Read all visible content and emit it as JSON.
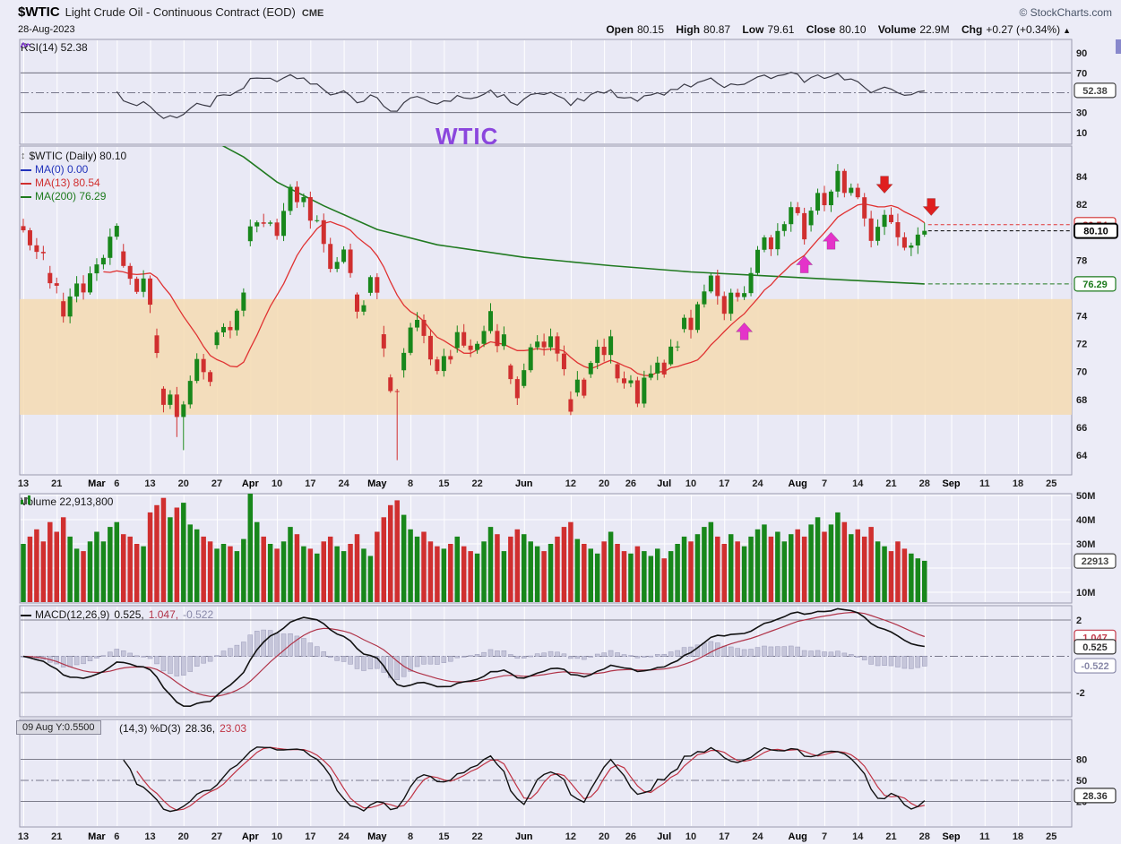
{
  "header": {
    "symbol": "$WTIC",
    "title": "Light Crude Oil - Continuous Contract (EOD)",
    "exchange": "CME",
    "copyright": "© StockCharts.com",
    "date": "28-Aug-2023",
    "quote": {
      "open_label": "Open",
      "open": "80.15",
      "high_label": "High",
      "high": "80.87",
      "low_label": "Low",
      "low": "79.61",
      "close_label": "Close",
      "close": "80.10",
      "volume_label": "Volume",
      "volume": "22.9M",
      "chg_label": "Chg",
      "chg": "+0.27 (+0.34%)",
      "chg_arrow": "▲"
    }
  },
  "watermark": "WTIC",
  "panels": {
    "rsi": {
      "legend": "RSI(14) 52.38"
    },
    "price": {
      "line1": "$WTIC (Daily) 80.10",
      "ma0": "MA(0) 0.00",
      "ma13": "MA(13) 80.54",
      "ma200": "MA(200) 76.29"
    },
    "volume": {
      "legend": "Volume 22,913,800"
    },
    "macd": {
      "name": "MACD(12,26,9)",
      "v1": "0.525,",
      "v2": "1.047,",
      "v3": "-0.522"
    },
    "stoch": {
      "tooltip": "09 Aug Y:0.5500",
      "name": "(14,3) %D(3)",
      "v1": "28.36,",
      "v2": "23.03"
    }
  },
  "colors": {
    "up": "#18871b",
    "down": "#d02f2f",
    "ma13": "#e03232",
    "ma200": "#217a21",
    "rsi_line": "#3a3a46",
    "macd_line": "#111111",
    "macd_signal": "#b03348",
    "macd_hist_fill": "#c6c6da",
    "macd_hist_stroke": "#9a9ab8",
    "stoch_k": "#111111",
    "stoch_d": "#c03344",
    "band": "rgba(244,218,178,0.85)",
    "arrow_up": "#e433c9",
    "arrow_down": "#df1f1f",
    "panel_bg": "#e9e9f5",
    "panel_border": "#9a9aae",
    "grid": "#ffffff",
    "accent_purple": "#8b46dd"
  },
  "axes": {
    "rsi": {
      "ticks": [
        [
          "90",
          90
        ],
        [
          "70",
          70
        ],
        [
          "30",
          30
        ],
        [
          "10",
          10
        ]
      ],
      "boxes": [
        [
          "52.38",
          52.38,
          "#444444",
          false
        ]
      ]
    },
    "price": {
      "ticks": [
        [
          "84",
          84
        ],
        [
          "82",
          82
        ],
        [
          "78",
          78
        ],
        [
          "74",
          74
        ],
        [
          "72",
          72
        ],
        [
          "70",
          70
        ],
        [
          "68",
          68
        ],
        [
          "66",
          66
        ],
        [
          "64",
          64
        ]
      ],
      "boxes": [
        [
          "80.54",
          80.54,
          "#d02f2f",
          false
        ],
        [
          "76.29",
          76.29,
          "#1d7a1d",
          false
        ],
        [
          "80.10",
          80.1,
          "#000000",
          true
        ]
      ]
    },
    "volume": {
      "ticks": [
        [
          "50M",
          50
        ],
        [
          "40M",
          40
        ],
        [
          "30M",
          30
        ],
        [
          "10M",
          10
        ]
      ],
      "boxes": [
        [
          "22913",
          22.913,
          "#444444",
          false
        ]
      ]
    },
    "macd": {
      "ticks": [
        [
          "2",
          2
        ],
        [
          "-2",
          -2
        ]
      ],
      "boxes": [
        [
          "1.047",
          1.047,
          "#c23b4b",
          false
        ],
        [
          "0.525",
          0.525,
          "#333333",
          false
        ],
        [
          "-0.522",
          -0.522,
          "#8888a8",
          false
        ]
      ]
    },
    "stoch": {
      "ticks": [
        [
          "80",
          80
        ],
        [
          "50",
          50
        ],
        [
          "20",
          20
        ]
      ],
      "boxes": [
        [
          "28.36",
          28.36,
          "#333333",
          false
        ]
      ]
    }
  },
  "chart_data": [
    {
      "id": "rsi",
      "type": "line",
      "name": "RSI(14)",
      "period": 14,
      "last": 52.38,
      "ylim": [
        0,
        100
      ],
      "ref_lines": [
        {
          "v": 70
        },
        {
          "v": 50,
          "dash": true
        },
        {
          "v": 30
        }
      ],
      "note": "computed from price closes"
    },
    {
      "id": "price",
      "type": "candlestick",
      "symbol": "$WTIC",
      "timeframe": "Daily",
      "last": {
        "open": 80.15,
        "high": 80.87,
        "low": 79.61,
        "close": 80.1
      },
      "start_date": "2023-02-13",
      "end_date": "2023-08-28",
      "holidays": [
        "2023-02-20",
        "2023-04-07",
        "2023-05-29",
        "2023-06-19",
        "2023-07-04",
        "2023-09-04"
      ],
      "future_slots": 19,
      "ylim": [
        62.6,
        86.2
      ],
      "band": {
        "top": 75.2,
        "bottom": 66.9
      },
      "ma13_period": 13,
      "ma13_last": 80.54,
      "ma200_last": 76.29,
      "ma200_points": [
        [
          26,
          87.2
        ],
        [
          33,
          85.4
        ],
        [
          38,
          83.6
        ],
        [
          45,
          81.9
        ],
        [
          53,
          80.2
        ],
        [
          62,
          79.1
        ],
        [
          75,
          78.2
        ],
        [
          88,
          77.6
        ],
        [
          100,
          77.15
        ],
        [
          112,
          76.85
        ],
        [
          124,
          76.55
        ],
        [
          135,
          76.29
        ]
      ],
      "closes": [
        80.14,
        79.06,
        78.59,
        78.49,
        76.34,
        76.16,
        73.95,
        75.39,
        76.32,
        75.68,
        77.05,
        77.69,
        78.16,
        79.68,
        80.46,
        77.58,
        76.66,
        75.72,
        76.68,
        74.8,
        71.33,
        67.61,
        68.35,
        66.74,
        67.64,
        69.33,
        70.9,
        69.96,
        69.26,
        72.81,
        73.2,
        72.97,
        74.37,
        75.67,
        80.42,
        80.71,
        80.61,
        80.7,
        79.74,
        81.53,
        83.26,
        82.16,
        82.52,
        80.83,
        80.86,
        79.16,
        77.37,
        77.87,
        78.76,
        77.07,
        74.3,
        74.76,
        76.78,
        75.66,
        71.66,
        68.6,
        68.56,
        71.34,
        73.16,
        73.71,
        72.56,
        70.87,
        70.04,
        71.11,
        70.86,
        72.83,
        71.86,
        71.55,
        71.99,
        72.91,
        74.34,
        71.83,
        72.67,
        69.46,
        68.09,
        70.1,
        71.74,
        72.15,
        71.74,
        72.53,
        71.29,
        70.17,
        67.12,
        69.42,
        68.27,
        70.62,
        71.78,
        71.19,
        72.53,
        69.51,
        69.16,
        69.37,
        67.7,
        69.56,
        69.86,
        70.64,
        69.79,
        71.79,
        71.8,
        73.86,
        72.99,
        74.83,
        75.75,
        76.89,
        75.42,
        74.15,
        75.66,
        75.35,
        75.63,
        77.07,
        78.74,
        79.63,
        78.78,
        80.09,
        80.58,
        81.8,
        81.37,
        79.49,
        81.55,
        82.82,
        81.94,
        82.92,
        84.4,
        82.82,
        83.19,
        82.51,
        80.99,
        79.38,
        80.39,
        81.25,
        80.72,
        79.64,
        78.89,
        79.05,
        79.83,
        80.1
      ],
      "wick_overrides": {
        "23": {
          "low": 65.3
        },
        "24": {
          "low": 64.36
        },
        "56": {
          "low": 63.64
        },
        "122": {
          "high": 84.89
        }
      },
      "x_labels": [
        "13",
        "21",
        "Mar",
        "6",
        "13",
        "20",
        "27",
        "Apr",
        "10",
        "17",
        "24",
        "May",
        "8",
        "15",
        "22",
        "Jun",
        "12",
        "20",
        "26",
        "Jul",
        "10",
        "17",
        "24",
        "Aug",
        "7",
        "14",
        "21",
        "28",
        "Sep",
        "11",
        "18",
        "25"
      ],
      "annotations": [
        {
          "dir": "up",
          "index": 108,
          "price": 73.5
        },
        {
          "dir": "up",
          "index": 117,
          "price": 78.3
        },
        {
          "dir": "up",
          "index": 121,
          "price": 80.0
        },
        {
          "dir": "down",
          "index": 129,
          "price": 82.8
        },
        {
          "dir": "down",
          "index": 136,
          "price": 81.2
        }
      ]
    },
    {
      "id": "volume",
      "type": "bar",
      "name": "Volume",
      "last": "22,913,800",
      "ylim": [
        0,
        52
      ],
      "unit": "millions",
      "values_millions": [
        30,
        33,
        36,
        31,
        39,
        35,
        41,
        33,
        28,
        27,
        31,
        35,
        31,
        37,
        39,
        34,
        33,
        30,
        29,
        43,
        46,
        49,
        41,
        45,
        47,
        38,
        36,
        33,
        31,
        28,
        30,
        29,
        27,
        32,
        52,
        39,
        33,
        30,
        28,
        31,
        37,
        34,
        29,
        28,
        26,
        31,
        33,
        29,
        27,
        30,
        34,
        28,
        25,
        35,
        41,
        46,
        48,
        42,
        36,
        33,
        35,
        31,
        29,
        28,
        30,
        33,
        29,
        27,
        26,
        31,
        37,
        34,
        27,
        33,
        36,
        34,
        31,
        29,
        27,
        30,
        33,
        37,
        39,
        32,
        30,
        28,
        26,
        31,
        35,
        30,
        27,
        26,
        29,
        27,
        25,
        28,
        24,
        27,
        30,
        33,
        31,
        34,
        37,
        39,
        33,
        30,
        34,
        31,
        29,
        33,
        36,
        38,
        33,
        35,
        31,
        34,
        36,
        33,
        38,
        41,
        35,
        38,
        43,
        39,
        34,
        36,
        33,
        37,
        31,
        29,
        27,
        31,
        28,
        26,
        24,
        23
      ]
    },
    {
      "id": "macd",
      "type": "line",
      "name": "MACD(12,26,9)",
      "params": [
        12,
        26,
        9
      ],
      "last": {
        "macd": 0.525,
        "signal": 1.047,
        "hist": -0.522
      },
      "ref_lines": [
        {
          "v": 2
        },
        {
          "v": 0,
          "dash": true
        },
        {
          "v": -2
        }
      ],
      "note": "computed from price closes"
    },
    {
      "id": "stoch",
      "type": "line",
      "name": "Slow Stochastics (14,3) %D(3)",
      "last": {
        "k": 28.36,
        "d": 23.03
      },
      "ref_lines": [
        {
          "v": 80
        },
        {
          "v": 50,
          "dash": true
        },
        {
          "v": 20
        }
      ],
      "ylim": [
        0,
        100
      ],
      "note": "computed from price OHLC"
    }
  ]
}
